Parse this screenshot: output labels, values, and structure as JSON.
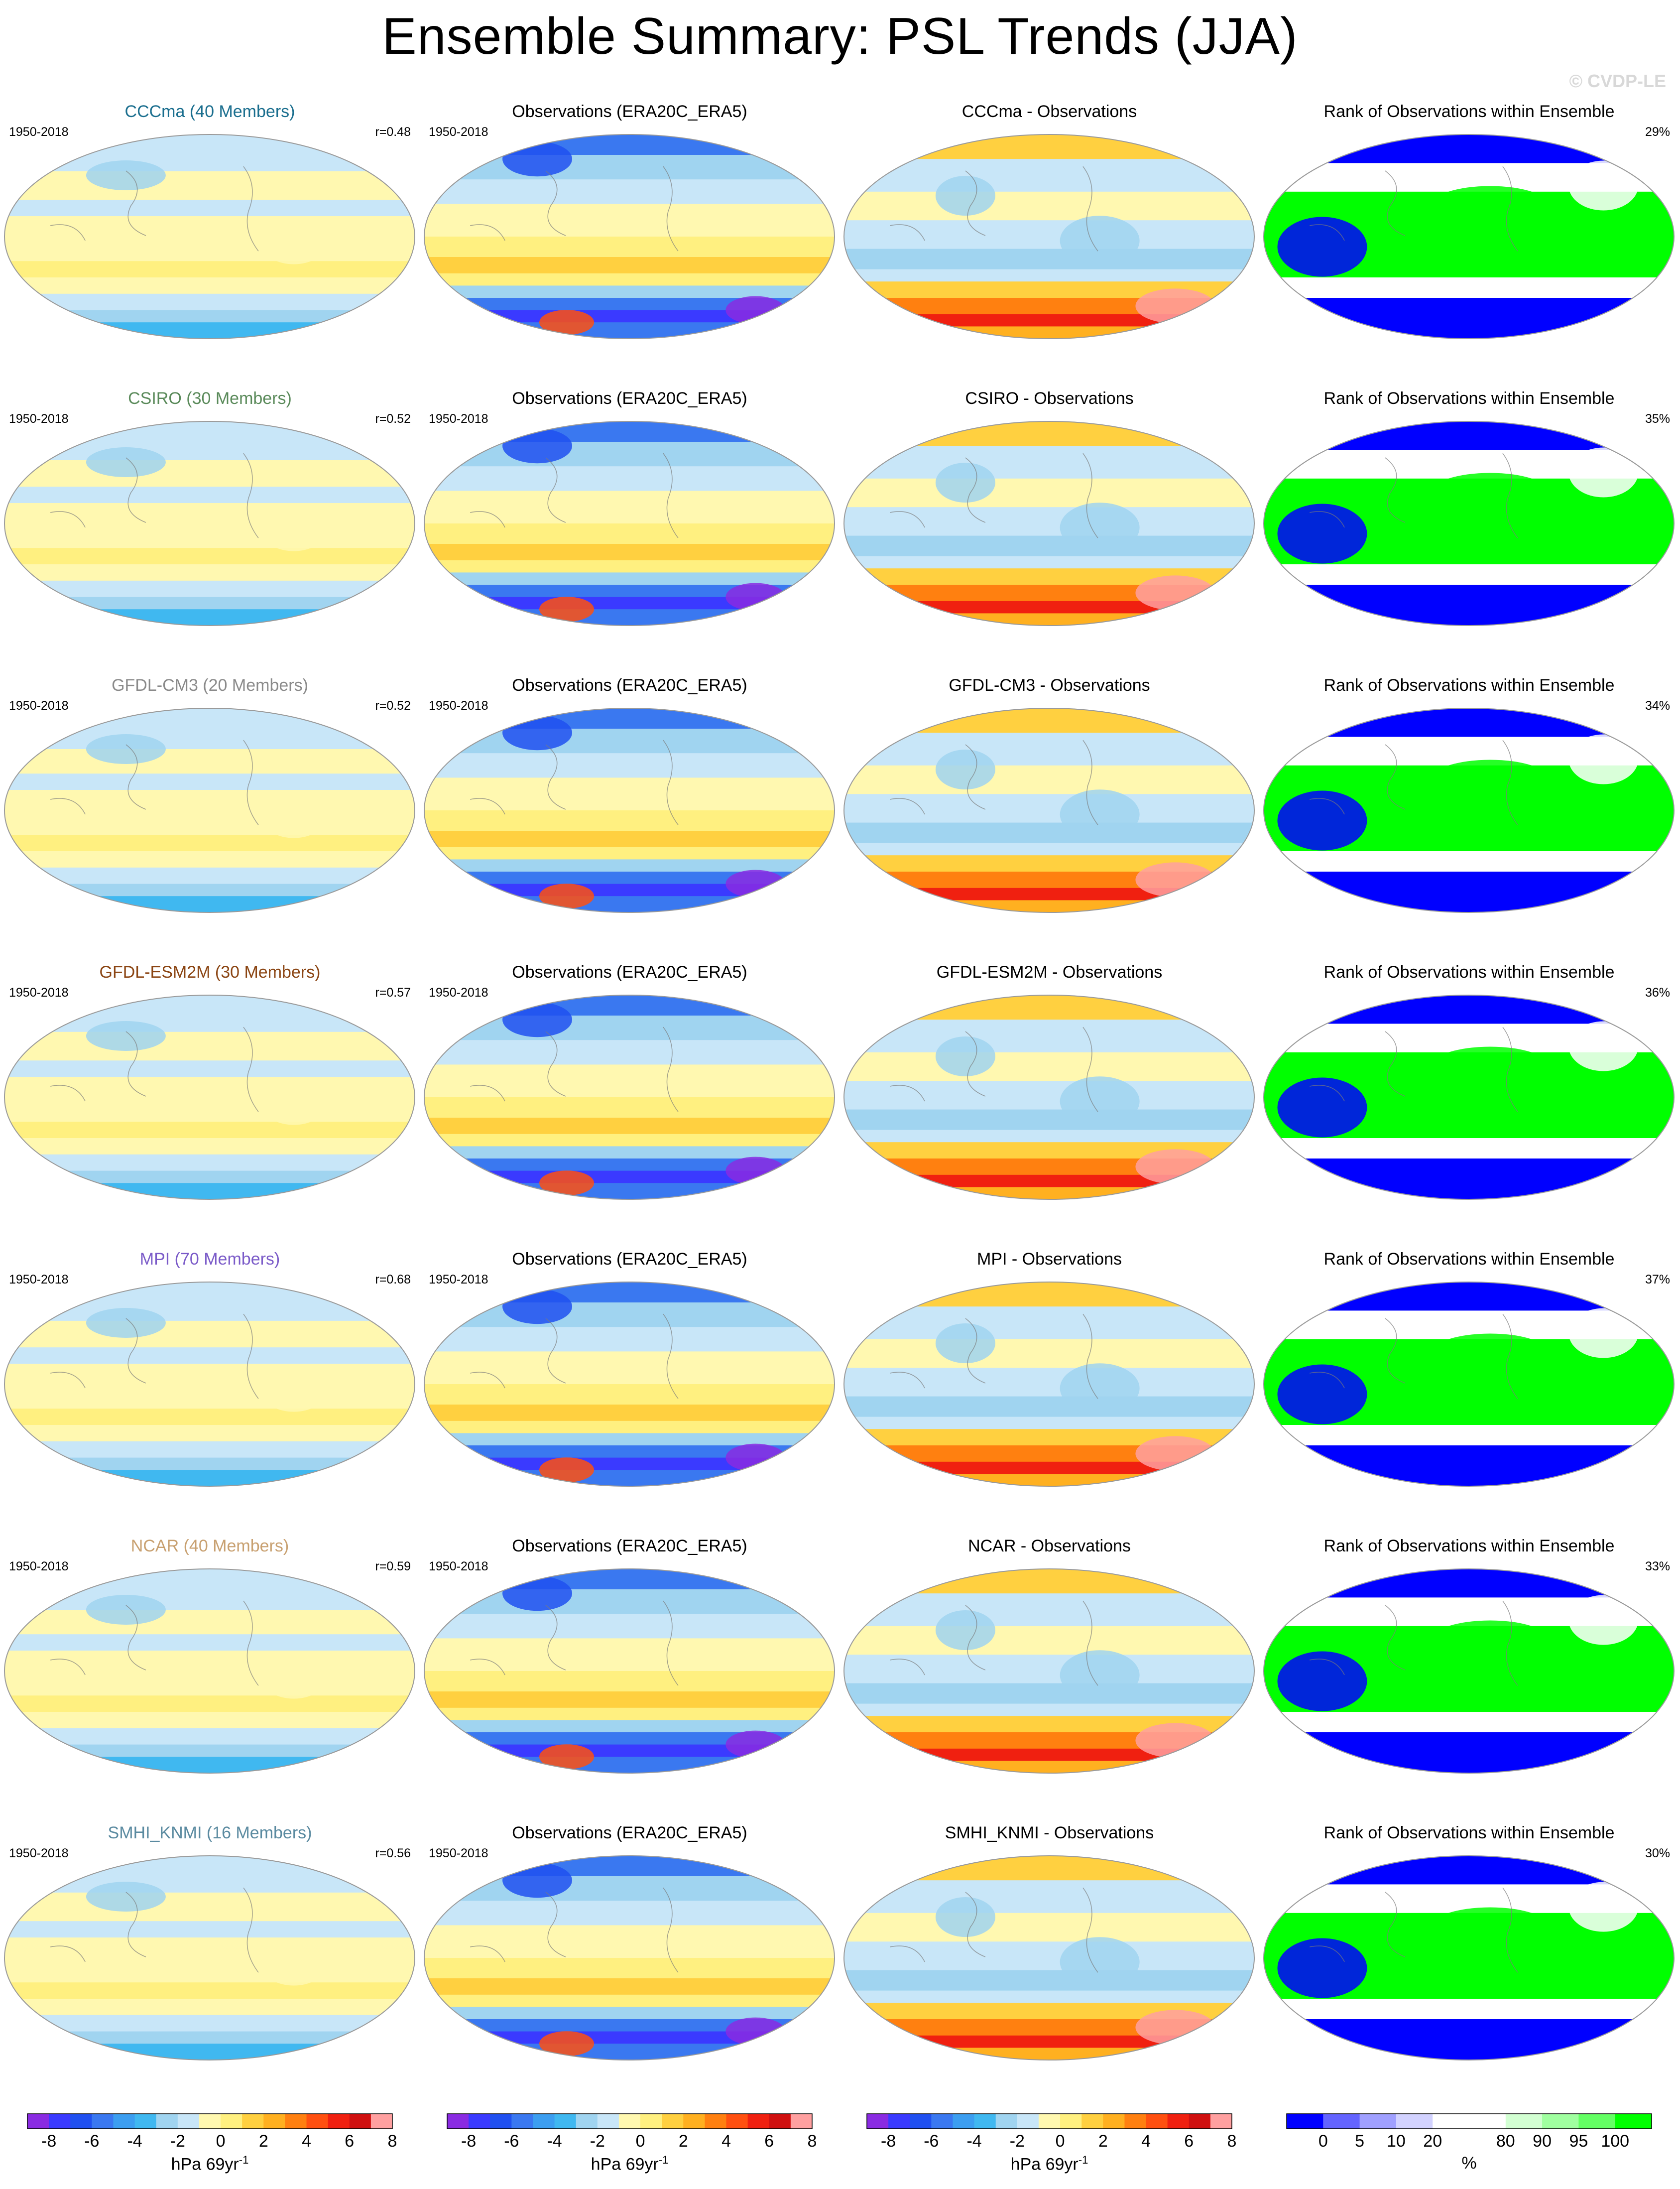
{
  "title": "Ensemble Summary: PSL Trends (JJA)",
  "copyright": "© CVDP-LE",
  "period": "1950-2018",
  "obs_title": "Observations (ERA20C_ERA5)",
  "rank_title": "Rank of Observations within Ensemble",
  "rows": [
    {
      "model": "CCCma (40 Members)",
      "title_color": "#1a6e8e",
      "r": "r=0.48",
      "diff_title": "CCCma - Observations",
      "rank_pct": "29%"
    },
    {
      "model": "CSIRO (30 Members)",
      "title_color": "#5a8a5a",
      "r": "r=0.52",
      "diff_title": "CSIRO - Observations",
      "rank_pct": "35%"
    },
    {
      "model": "GFDL-CM3 (20 Members)",
      "title_color": "#8a8a8a",
      "r": "r=0.52",
      "diff_title": "GFDL-CM3 - Observations",
      "rank_pct": "34%"
    },
    {
      "model": "GFDL-ESM2M (30 Members)",
      "title_color": "#8b4513",
      "r": "r=0.57",
      "diff_title": "GFDL-ESM2M - Observations",
      "rank_pct": "36%"
    },
    {
      "model": "MPI (70 Members)",
      "title_color": "#7a5ac8",
      "r": "r=0.68",
      "diff_title": "MPI - Observations",
      "rank_pct": "37%"
    },
    {
      "model": "NCAR (40 Members)",
      "title_color": "#c8a070",
      "r": "r=0.59",
      "diff_title": "NCAR - Observations",
      "rank_pct": "33%"
    },
    {
      "model": "SMHI_KNMI (16 Members)",
      "title_color": "#5a8aa0",
      "r": "r=0.56",
      "diff_title": "SMHI_KNMI - Observations",
      "rank_pct": "30%"
    }
  ],
  "colorbars": {
    "trend": {
      "unit": "hPa 69yr",
      "unit_exp": "-1",
      "ticks": [
        "-8",
        "-6",
        "-4",
        "-2",
        "0",
        "2",
        "4",
        "6",
        "8"
      ],
      "colors": [
        "#8a2be2",
        "#3a3aff",
        "#2050f0",
        "#3a78f0",
        "#3c9ef0",
        "#40b8f0",
        "#a0d4f0",
        "#c8e6f8",
        "#fff8b0",
        "#fff080",
        "#ffd040",
        "#ffb020",
        "#ff8010",
        "#ff5010",
        "#f02010",
        "#d01010",
        "#ffa0a0"
      ]
    },
    "rank": {
      "unit": "%",
      "ticks": [
        "0",
        "5",
        "10",
        "20",
        "80",
        "90",
        "95",
        "100"
      ],
      "colors": [
        "#0000ff",
        "#6464ff",
        "#a0a0ff",
        "#d2d2ff",
        "#ffffff",
        "#ffffff",
        "#d2ffd2",
        "#a0ffa0",
        "#64ff64",
        "#00ff00"
      ]
    }
  }
}
